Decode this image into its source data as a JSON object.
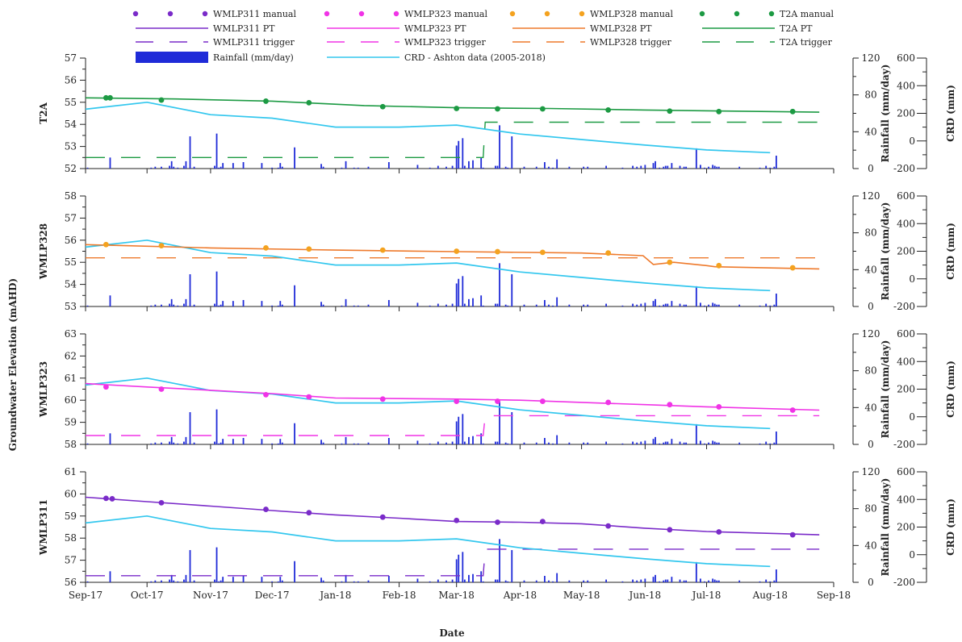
{
  "colors": {
    "WMLP311": "#7a2bc9",
    "WMLP323": "#f033e6",
    "WMLP328": "#f4a21f",
    "WMLP328_line": "#ee7a2c",
    "T2A": "#1c9a43",
    "rainfall": "#1f2bd8",
    "crd": "#33c7ee"
  },
  "chart_data": {
    "type": "line",
    "xlabel": "Date",
    "ylabel": "Groundwater Elevation (mAHD)",
    "x_ticks": [
      "Sep-17",
      "Oct-17",
      "Nov-17",
      "Dec-17",
      "Jan-18",
      "Feb-18",
      "Mar-18",
      "Apr-18",
      "May-18",
      "Jun-18",
      "Jul-18",
      "Aug-18",
      "Sep-18"
    ],
    "x_range": [
      "2017-09-01",
      "2018-09-01"
    ],
    "rain_axis": {
      "label": "Rainfall (mm/day)",
      "ylim": [
        0,
        120
      ],
      "ticks": [
        "0",
        "40",
        "80",
        "120"
      ]
    },
    "crd_axis": {
      "label": "CRD (mm)",
      "ylim": [
        -200,
        600
      ],
      "ticks": [
        "-200",
        "0",
        "200",
        "400",
        "600"
      ]
    },
    "legend": [
      [
        "WMLP311 manual",
        "WMLP323 manual",
        "WMLP328 manual",
        "T2A manual"
      ],
      [
        "WMLP311 PT",
        "WMLP323 PT",
        "WMLP328 PT",
        "T2A PT"
      ],
      [
        "WMLP311 trigger",
        "WMLP323 trigger",
        "WMLP328 trigger",
        "T2A trigger"
      ],
      [
        "Rainfall (mm/day)",
        "CRD - Ashton data (2005-2018)"
      ]
    ],
    "crd": {
      "x": [
        "2017-09-01",
        "2017-10-01",
        "2017-11-01",
        "2017-12-01",
        "2018-01-01",
        "2018-02-01",
        "2018-03-01",
        "2018-04-01",
        "2018-05-01",
        "2018-06-01",
        "2018-07-01",
        "2018-08-01"
      ],
      "values": [
        230,
        280,
        190,
        165,
        100,
        100,
        115,
        50,
        10,
        -30,
        -65,
        -85
      ]
    },
    "rainfall": {
      "x": [
        "2017-09-02",
        "2017-09-13",
        "2017-10-03",
        "2017-10-05",
        "2017-10-08",
        "2017-10-12",
        "2017-10-13",
        "2017-10-14",
        "2017-10-16",
        "2017-10-19",
        "2017-10-20",
        "2017-10-22",
        "2017-10-24",
        "2017-11-03",
        "2017-11-04",
        "2017-11-05",
        "2017-11-06",
        "2017-11-07",
        "2017-11-12",
        "2017-11-17",
        "2017-11-26",
        "2017-12-01",
        "2017-12-04",
        "2017-12-05",
        "2017-12-06",
        "2017-12-12",
        "2017-12-25",
        "2017-12-26",
        "2018-01-04",
        "2018-01-06",
        "2018-01-10",
        "2018-01-12",
        "2018-01-17",
        "2018-01-27",
        "2018-02-10",
        "2018-02-16",
        "2018-02-20",
        "2018-02-24",
        "2018-02-27",
        "2018-03-01",
        "2018-03-02",
        "2018-03-04",
        "2018-03-05",
        "2018-03-07",
        "2018-03-09",
        "2018-03-13",
        "2018-03-14",
        "2018-03-20",
        "2018-03-21",
        "2018-03-22",
        "2018-03-25",
        "2018-03-26",
        "2018-03-28",
        "2018-04-03",
        "2018-04-09",
        "2018-04-13",
        "2018-04-15",
        "2018-04-17",
        "2018-04-19",
        "2018-04-25",
        "2018-05-02",
        "2018-05-04",
        "2018-05-13",
        "2018-05-21",
        "2018-05-26",
        "2018-05-28",
        "2018-05-30",
        "2018-06-01",
        "2018-06-05",
        "2018-06-06",
        "2018-06-08",
        "2018-06-10",
        "2018-06-11",
        "2018-06-12",
        "2018-06-14",
        "2018-06-18",
        "2018-06-20",
        "2018-06-21",
        "2018-06-26",
        "2018-06-28",
        "2018-06-30",
        "2018-07-02",
        "2018-07-04",
        "2018-07-05",
        "2018-07-06",
        "2018-07-07",
        "2018-07-17",
        "2018-07-27",
        "2018-07-30",
        "2018-08-01",
        "2018-08-03",
        "2018-08-04"
      ],
      "values": [
        1,
        12,
        1,
        2,
        2,
        3,
        8,
        2,
        1,
        3,
        8,
        35,
        2,
        3,
        38,
        1,
        2,
        6,
        6,
        7,
        6,
        1,
        1,
        6,
        2,
        23,
        5,
        2,
        1,
        8,
        1,
        1,
        2,
        7,
        4,
        1,
        3,
        2,
        3,
        25,
        30,
        33,
        3,
        8,
        9,
        12,
        1,
        3,
        3,
        47,
        2,
        1,
        35,
        2,
        2,
        7,
        2,
        1,
        10,
        2,
        2,
        2,
        3,
        1,
        3,
        2,
        3,
        4,
        6,
        8,
        1,
        2,
        3,
        3,
        6,
        3,
        2,
        2,
        22,
        4,
        1,
        2,
        4,
        3,
        2,
        2,
        2,
        1,
        3,
        1,
        2,
        14
      ]
    },
    "panels": [
      {
        "name": "T2A",
        "ylim": [
          52,
          57
        ],
        "ticks": [
          "52",
          "53",
          "54",
          "55",
          "56",
          "57"
        ],
        "color_key": "T2A",
        "pt": {
          "x": [
            "2017-09-01",
            "2017-10-15",
            "2017-12-01",
            "2018-01-15",
            "2018-03-01",
            "2018-04-15",
            "2018-06-01",
            "2018-07-15",
            "2018-08-25"
          ],
          "values": [
            55.2,
            55.15,
            55.05,
            54.85,
            54.75,
            54.72,
            54.65,
            54.6,
            54.55
          ]
        },
        "manual": {
          "x": [
            "2017-09-11",
            "2017-09-13",
            "2017-10-08",
            "2017-11-28",
            "2017-12-19",
            "2018-01-24",
            "2018-03-01",
            "2018-03-21",
            "2018-04-12",
            "2018-05-14",
            "2018-06-13",
            "2018-07-07",
            "2018-08-12"
          ],
          "values": [
            55.2,
            55.2,
            55.1,
            55.05,
            54.98,
            54.8,
            54.72,
            54.7,
            54.7,
            54.65,
            54.6,
            54.58,
            54.58
          ]
        },
        "trigger": {
          "x": [
            "2017-09-01",
            "2018-03-14",
            "2018-03-15",
            "2018-08-25"
          ],
          "values": [
            52.5,
            52.5,
            54.1,
            54.1
          ]
        }
      },
      {
        "name": "WMLP328",
        "ylim": [
          53,
          58
        ],
        "ticks": [
          "53",
          "54",
          "55",
          "56",
          "57",
          "58"
        ],
        "color_key": "WMLP328",
        "pt": {
          "x": [
            "2017-09-01",
            "2017-11-01",
            "2018-01-01",
            "2018-03-01",
            "2018-05-01",
            "2018-05-31",
            "2018-06-05",
            "2018-06-15",
            "2018-07-01",
            "2018-07-05",
            "2018-08-25"
          ],
          "values": [
            55.8,
            55.65,
            55.55,
            55.48,
            55.42,
            55.3,
            54.9,
            55.0,
            54.85,
            54.8,
            54.7
          ]
        },
        "manual": {
          "x": [
            "2017-09-11",
            "2017-10-08",
            "2017-11-28",
            "2017-12-19",
            "2018-01-24",
            "2018-03-01",
            "2018-03-21",
            "2018-04-12",
            "2018-05-14",
            "2018-06-13",
            "2018-07-07",
            "2018-08-12"
          ],
          "values": [
            55.8,
            55.75,
            55.65,
            55.6,
            55.55,
            55.5,
            55.48,
            55.45,
            55.42,
            55.0,
            54.85,
            54.75
          ]
        },
        "trigger": {
          "x": [
            "2017-09-01",
            "2018-08-25"
          ],
          "values": [
            55.2,
            55.2
          ]
        }
      },
      {
        "name": "WMLP323",
        "ylim": [
          58,
          63
        ],
        "ticks": [
          "58",
          "59",
          "60",
          "61",
          "62",
          "63"
        ],
        "color_key": "WMLP323",
        "pt": {
          "x": [
            "2017-09-01",
            "2017-10-01",
            "2017-11-01",
            "2017-12-01",
            "2018-01-01",
            "2018-03-01",
            "2018-04-01",
            "2018-05-01",
            "2018-06-01",
            "2018-07-01",
            "2018-08-25"
          ],
          "values": [
            60.75,
            60.6,
            60.45,
            60.3,
            60.1,
            60.05,
            60.0,
            59.9,
            59.8,
            59.7,
            59.55
          ]
        },
        "manual": {
          "x": [
            "2017-09-11",
            "2017-10-08",
            "2017-11-28",
            "2017-12-19",
            "2018-01-24",
            "2018-03-01",
            "2018-03-21",
            "2018-04-12",
            "2018-05-14",
            "2018-06-13",
            "2018-07-07",
            "2018-08-12"
          ],
          "values": [
            60.6,
            60.5,
            60.25,
            60.15,
            60.05,
            59.95,
            59.95,
            59.95,
            59.9,
            59.8,
            59.7,
            59.55
          ]
        },
        "trigger": {
          "x": [
            "2017-09-01",
            "2018-03-14",
            "2018-03-15",
            "2018-08-25"
          ],
          "values": [
            58.4,
            58.4,
            59.3,
            59.3
          ]
        }
      },
      {
        "name": "WMLP311",
        "ylim": [
          56,
          61
        ],
        "ticks": [
          "56",
          "57",
          "58",
          "59",
          "60",
          "61"
        ],
        "color_key": "WMLP311",
        "pt": {
          "x": [
            "2017-09-01",
            "2017-10-01",
            "2017-11-01",
            "2017-12-01",
            "2018-01-01",
            "2018-02-01",
            "2018-03-01",
            "2018-04-01",
            "2018-05-01",
            "2018-06-01",
            "2018-07-01",
            "2018-08-25"
          ],
          "values": [
            59.85,
            59.65,
            59.45,
            59.25,
            59.05,
            58.9,
            58.75,
            58.72,
            58.65,
            58.45,
            58.3,
            58.15
          ]
        },
        "manual": {
          "x": [
            "2017-09-11",
            "2017-09-14",
            "2017-10-08",
            "2017-11-28",
            "2017-12-19",
            "2018-01-24",
            "2018-03-01",
            "2018-03-21",
            "2018-04-12",
            "2018-05-14",
            "2018-06-13",
            "2018-07-07",
            "2018-08-12"
          ],
          "values": [
            59.8,
            59.78,
            59.6,
            59.3,
            59.15,
            58.95,
            58.8,
            58.72,
            58.75,
            58.55,
            58.38,
            58.28,
            58.15
          ]
        },
        "trigger": {
          "x": [
            "2017-09-01",
            "2018-03-14",
            "2018-03-15",
            "2018-08-25"
          ],
          "values": [
            56.3,
            56.3,
            57.5,
            57.5
          ]
        }
      }
    ]
  }
}
